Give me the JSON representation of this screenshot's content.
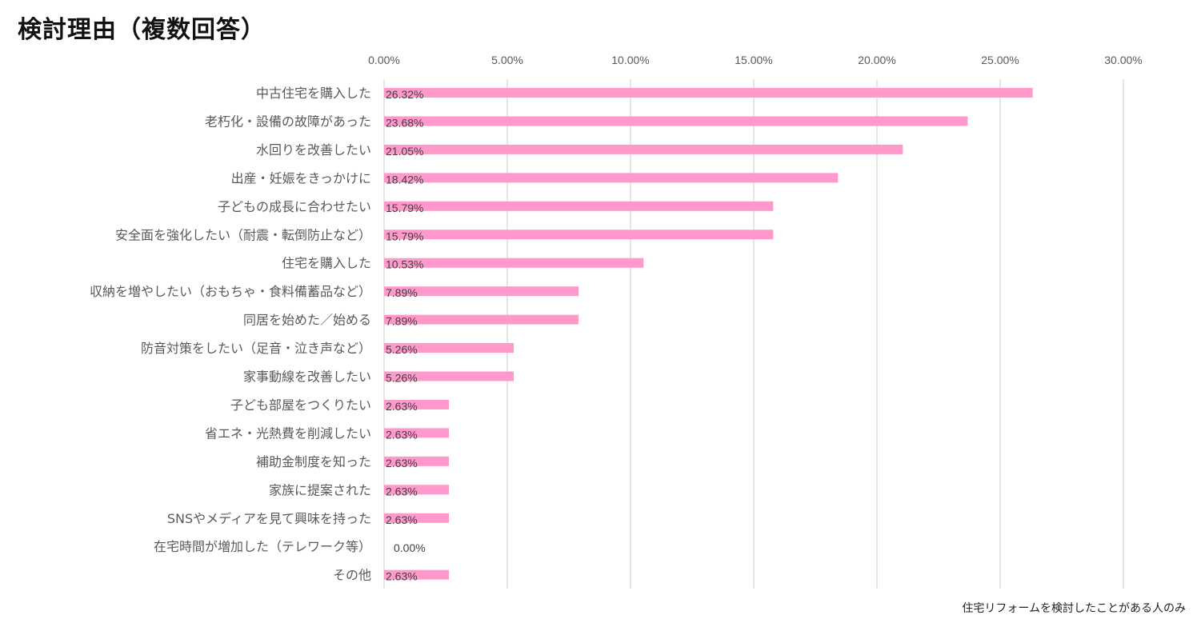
{
  "chart_data": {
    "type": "bar",
    "orientation": "horizontal",
    "title": "検討理由（複数回答）",
    "footnote": "住宅リフォームを検討したことがある人のみ",
    "categories": [
      "中古住宅を購入した",
      "老朽化・設備の故障があった",
      "水回りを改善したい",
      "出産・妊娠をきっかけに",
      "子どもの成長に合わせたい",
      "安全面を強化したい（耐震・転倒防止など）",
      "住宅を購入した",
      "収納を増やしたい（おもちゃ・食料備蓄品など）",
      "同居を始めた／始める",
      "防音対策をしたい（足音・泣き声など）",
      "家事動線を改善したい",
      "子ども部屋をつくりたい",
      "省エネ・光熱費を削減したい",
      "補助金制度を知った",
      "家族に提案された",
      "SNSやメディアを見て興味を持った",
      "在宅時間が増加した（テレワーク等）",
      "その他"
    ],
    "values": [
      26.32,
      23.68,
      21.05,
      18.42,
      15.79,
      15.79,
      10.53,
      7.89,
      7.89,
      5.26,
      5.26,
      2.63,
      2.63,
      2.63,
      2.63,
      2.63,
      0.0,
      2.63
    ],
    "data_labels": [
      "26.32%",
      "23.68%",
      "21.05%",
      "18.42%",
      "15.79%",
      "15.79%",
      "10.53%",
      "7.89%",
      "7.89%",
      "5.26%",
      "5.26%",
      "2.63%",
      "2.63%",
      "2.63%",
      "2.63%",
      "2.63%",
      "0.00%",
      "2.63%"
    ],
    "xlim": [
      0,
      30
    ],
    "x_ticks": [
      "0.00%",
      "5.00%",
      "10.00%",
      "15.00%",
      "20.00%",
      "25.00%",
      "30.00%"
    ],
    "x_tick_values": [
      0,
      5,
      10,
      15,
      20,
      25,
      30
    ],
    "x_axis_position": "top",
    "grid": true,
    "bar_color": "#ff99cc",
    "grid_color": "#d9d9d9"
  }
}
